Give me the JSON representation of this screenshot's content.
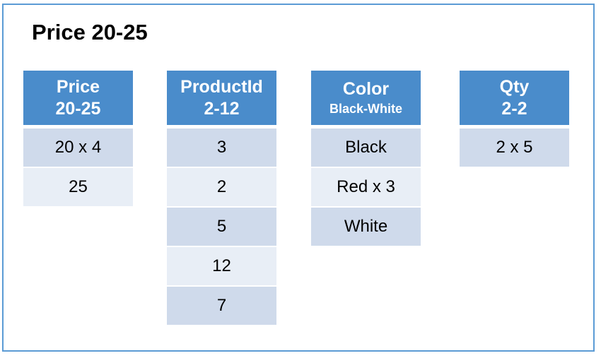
{
  "title": "Price 20-25",
  "colors": {
    "header": "#4a8ccb",
    "row_dark": "#cfdaeb",
    "row_light": "#e8eef6",
    "frame": "#5b9bd5"
  },
  "columns": [
    {
      "name": "Price",
      "range": "20-25",
      "values": [
        "20 x 4",
        "25"
      ]
    },
    {
      "name": "ProductId",
      "range": "2-12",
      "values": [
        "3",
        "2",
        "5",
        "12",
        "7"
      ]
    },
    {
      "name": "Color",
      "range": "Black-White",
      "values": [
        "Black",
        "Red x 3",
        "White"
      ]
    },
    {
      "name": "Qty",
      "range": "2-2",
      "values": [
        "2 x 5"
      ]
    }
  ]
}
